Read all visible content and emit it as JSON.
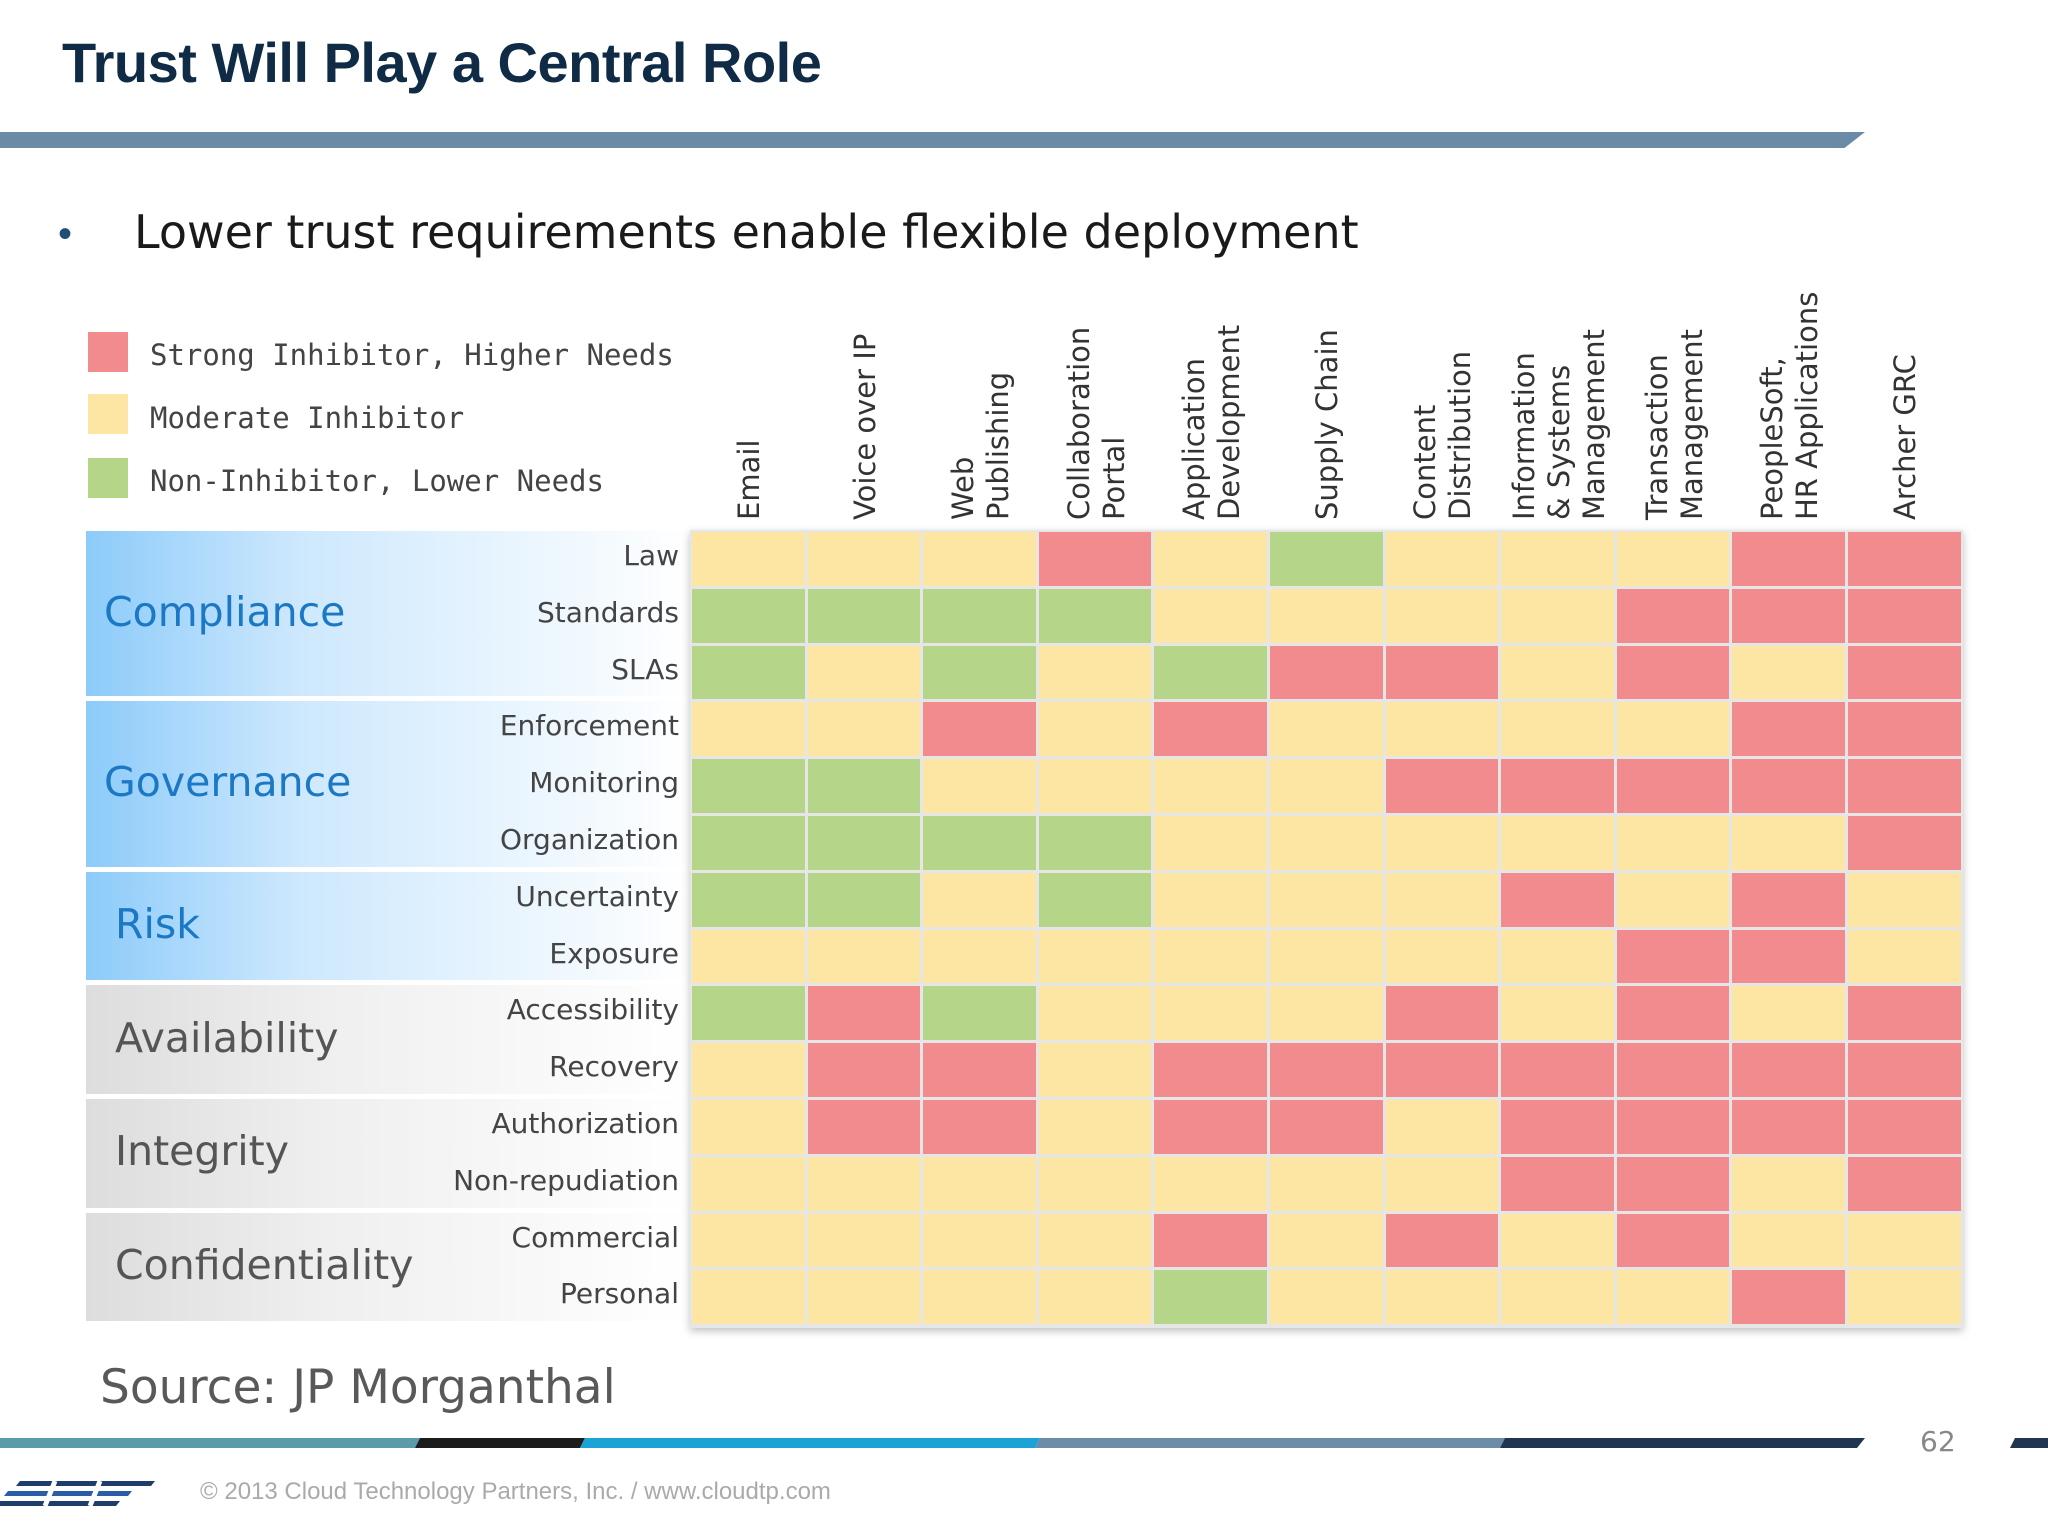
{
  "title": "Trust Will Play a Central Role",
  "bullet": "Lower trust requirements enable flexible deployment",
  "legend": [
    {
      "key": "S",
      "label": "Strong Inhibitor, Higher Needs",
      "color": "#f28b8e"
    },
    {
      "key": "M",
      "label": "Moderate Inhibitor",
      "color": "#fde5a4"
    },
    {
      "key": "N",
      "label": "Non-Inhibitor, Lower Needs",
      "color": "#b5d688"
    }
  ],
  "chart_data": {
    "type": "heatmap",
    "title": "Trust Will Play a Central Role",
    "columns": [
      "Email",
      "Voice over IP",
      "Web\nPublishing",
      "Collaboration\nPortal",
      "Application\nDevelopment",
      "Supply Chain",
      "Content\nDistribution",
      "Information\n& Systems\nManagement",
      "Transaction\nManagement",
      "PeopleSoft,\nHR Applications",
      "Archer GRC"
    ],
    "groups": [
      {
        "name": "Compliance",
        "style": "blue",
        "rows": [
          "Law",
          "Standards",
          "SLAs"
        ]
      },
      {
        "name": "Governance",
        "style": "blue",
        "rows": [
          "Enforcement",
          "Monitoring",
          "Organization"
        ]
      },
      {
        "name": "Risk",
        "style": "blue",
        "rows": [
          "Uncertainty",
          "Exposure"
        ]
      },
      {
        "name": "Availability",
        "style": "gray",
        "rows": [
          "Accessibility",
          "Recovery"
        ]
      },
      {
        "name": "Integrity",
        "style": "gray",
        "rows": [
          "Authorization",
          "Non-repudiation"
        ]
      },
      {
        "name": "Confidentiality",
        "style": "gray",
        "rows": [
          "Commercial",
          "Personal"
        ]
      }
    ],
    "values": [
      [
        "M",
        "M",
        "M",
        "S",
        "M",
        "N",
        "M",
        "M",
        "M",
        "S",
        "S"
      ],
      [
        "N",
        "N",
        "N",
        "N",
        "M",
        "M",
        "M",
        "M",
        "S",
        "S",
        "S"
      ],
      [
        "N",
        "M",
        "N",
        "M",
        "N",
        "S",
        "S",
        "M",
        "S",
        "M",
        "S"
      ],
      [
        "M",
        "M",
        "S",
        "M",
        "S",
        "M",
        "M",
        "M",
        "M",
        "S",
        "S"
      ],
      [
        "N",
        "N",
        "M",
        "M",
        "M",
        "M",
        "S",
        "S",
        "S",
        "S",
        "S"
      ],
      [
        "N",
        "N",
        "N",
        "N",
        "M",
        "M",
        "M",
        "M",
        "M",
        "M",
        "S"
      ],
      [
        "N",
        "N",
        "M",
        "N",
        "M",
        "M",
        "M",
        "S",
        "M",
        "S",
        "M"
      ],
      [
        "M",
        "M",
        "M",
        "M",
        "M",
        "M",
        "M",
        "M",
        "S",
        "S",
        "M"
      ],
      [
        "N",
        "S",
        "N",
        "M",
        "M",
        "M",
        "S",
        "M",
        "S",
        "M",
        "S"
      ],
      [
        "M",
        "S",
        "S",
        "M",
        "S",
        "S",
        "S",
        "S",
        "S",
        "S",
        "S"
      ],
      [
        "M",
        "S",
        "S",
        "M",
        "S",
        "S",
        "M",
        "S",
        "S",
        "S",
        "S"
      ],
      [
        "M",
        "M",
        "M",
        "M",
        "M",
        "M",
        "M",
        "S",
        "S",
        "M",
        "S"
      ],
      [
        "M",
        "M",
        "M",
        "M",
        "S",
        "M",
        "S",
        "M",
        "S",
        "M",
        "M"
      ],
      [
        "M",
        "M",
        "M",
        "M",
        "N",
        "M",
        "M",
        "M",
        "M",
        "S",
        "M"
      ]
    ]
  },
  "source": "Source: JP Morganthal",
  "page_number": "62",
  "copyright": "© 2013 Cloud Technology Partners, Inc.  /  www.cloudtp.com",
  "colors": {
    "footer_segments": [
      "#5b9aa9",
      "#1c1c1c",
      "#1ba3d6",
      "#6c8da8",
      "#1f3550"
    ]
  }
}
